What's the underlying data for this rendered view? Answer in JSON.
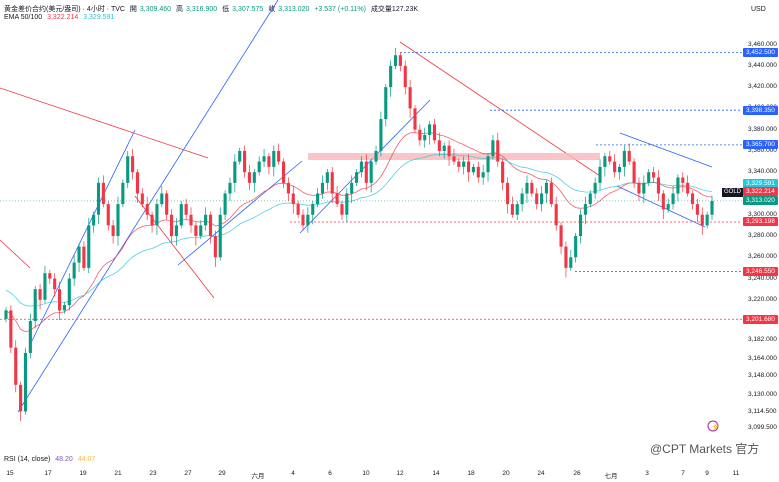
{
  "header": {
    "symbol": "黄金差价合约(美元/盎司) · 4小时 · TVC",
    "open_label": "開",
    "open": "3,309.460",
    "high_label": "高",
    "high": "3,316.900",
    "low_label": "低",
    "low": "3,307.575",
    "close_label": "收",
    "close": "3,313.020",
    "change": "+3.537 (+0.11%)",
    "volume": "成交量127.23K",
    "ema_label": "EMA 50/100",
    "ema50": "3,322.214",
    "ema100": "3,329.591"
  },
  "currency": "USD",
  "gold_tag": "GOLD",
  "rsi": {
    "label": "RSI (14, close)",
    "v1": "48.20",
    "v2": "44.07"
  },
  "watermark": "@CPT Markets 官方",
  "colors": {
    "up": "#089981",
    "down": "#f23645",
    "ema50": "#f23645",
    "ema100": "#26c6da",
    "trend_blue": "#2962ff",
    "trend_red": "#f23645",
    "zone": "#f7b6bb"
  },
  "chart_data": {
    "type": "candlestick",
    "title": "黄金差价合约(美元/盎司) · 4小时 · TVC",
    "ylabel": "USD",
    "ylim": [
      3090,
      3470
    ],
    "y_ticks": [
      3460.0,
      3440.0,
      3420.0,
      3400.0,
      3380.0,
      3360.0,
      3340.0,
      3320.0,
      3300.0,
      3280.0,
      3260.0,
      3240.0,
      3220.0,
      3200.0,
      3182.0,
      3164.0,
      3148.0,
      3130.0,
      3114.5,
      3099.5
    ],
    "y_tick_labels": [
      "3,460.000",
      "3,440.000",
      "3,420.000",
      "3,400.000",
      "3,380.000",
      "3,360.000",
      "3,340.000",
      "3,320.000",
      "3,300.000",
      "3,280.000",
      "3,260.000",
      "3,240.000",
      "3,220.000",
      "3,200.000",
      "3,182.000",
      "3,164.000",
      "3,148.000",
      "3,130.000",
      "3,114.500",
      "3,099.500"
    ],
    "x_tick_labels": [
      "15",
      "17",
      "19",
      "21",
      "23",
      "27",
      "29",
      "六月",
      "4",
      "6",
      "10",
      "12",
      "14",
      "18",
      "20",
      "24",
      "26",
      "七月",
      "3",
      "7",
      "9",
      "11"
    ],
    "price_tags": [
      {
        "value": 3452.5,
        "label": "3,452.500",
        "color": "#2962ff"
      },
      {
        "value": 3398.35,
        "label": "3,398.350",
        "color": "#2962ff"
      },
      {
        "value": 3365.7,
        "label": "3,365.700",
        "color": "#2962ff"
      },
      {
        "value": 3329.591,
        "label": "3,329.591",
        "color": "#26c6da"
      },
      {
        "value": 3322.214,
        "label": "3,322.214",
        "color": "#f23645"
      },
      {
        "value": 3313.02,
        "label": "3,313.020",
        "color": "#089981"
      },
      {
        "value": 3293.198,
        "label": "3,293.198",
        "color": "#f23645"
      },
      {
        "value": 3246.55,
        "label": "3,246.550",
        "color": "#f23645"
      },
      {
        "value": 3201.68,
        "label": "3,201.680",
        "color": "#f23645"
      }
    ],
    "close_series": [
      3210,
      3175,
      3140,
      3115,
      3170,
      3200,
      3230,
      3220,
      3245,
      3240,
      3230,
      3210,
      3215,
      3240,
      3255,
      3270,
      3250,
      3290,
      3300,
      3330,
      3310,
      3290,
      3280,
      3310,
      3330,
      3355,
      3340,
      3320,
      3310,
      3300,
      3290,
      3310,
      3320,
      3300,
      3280,
      3290,
      3310,
      3300,
      3290,
      3280,
      3290,
      3300,
      3280,
      3260,
      3300,
      3320,
      3330,
      3350,
      3360,
      3340,
      3330,
      3340,
      3350,
      3355,
      3345,
      3360,
      3350,
      3330,
      3320,
      3310,
      3300,
      3290,
      3300,
      3310,
      3320,
      3330,
      3340,
      3320,
      3310,
      3300,
      3320,
      3330,
      3340,
      3350,
      3330,
      3350,
      3360,
      3390,
      3420,
      3440,
      3450,
      3440,
      3420,
      3400,
      3380,
      3370,
      3375,
      3385,
      3370,
      3360,
      3365,
      3355,
      3350,
      3345,
      3350,
      3340,
      3345,
      3335,
      3340,
      3355,
      3370,
      3350,
      3330,
      3310,
      3300,
      3310,
      3320,
      3330,
      3320,
      3310,
      3320,
      3330,
      3310,
      3290,
      3270,
      3250,
      3260,
      3280,
      3300,
      3310,
      3320,
      3330,
      3345,
      3355,
      3350,
      3340,
      3345,
      3360,
      3350,
      3330,
      3320,
      3330,
      3340,
      3335,
      3320,
      3305,
      3310,
      3320,
      3335,
      3330,
      3320,
      3310,
      3300,
      3290,
      3300,
      3313.02
    ]
  }
}
